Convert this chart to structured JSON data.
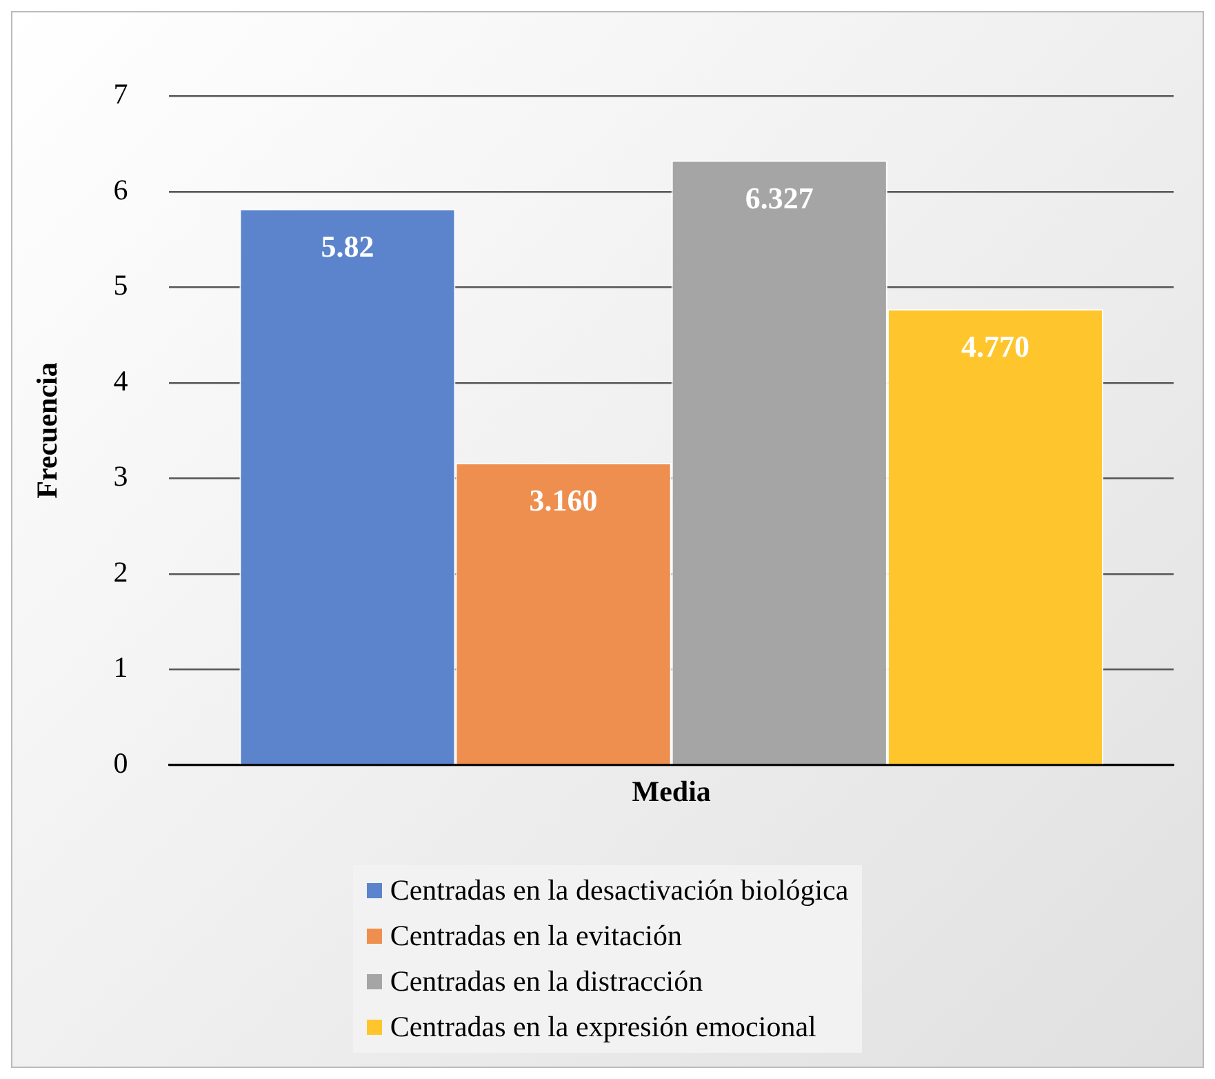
{
  "chart_data": {
    "type": "bar",
    "ylabel": "Frecuencia",
    "categories": [
      "Media"
    ],
    "series": [
      {
        "name": "Centradas en la desactivación biológica",
        "color": "#5b84cc",
        "values": [
          5.82
        ],
        "value_labels": [
          "5.82"
        ]
      },
      {
        "name": "Centradas en la evitación",
        "color": "#ee8f4f",
        "values": [
          3.16
        ],
        "value_labels": [
          "3.160"
        ]
      },
      {
        "name": "Centradas en la distracción",
        "color": "#a5a5a5",
        "values": [
          6.327
        ],
        "value_labels": [
          "6.327"
        ]
      },
      {
        "name": "Centradas en la expresión emocional",
        "color": "#fec62c",
        "values": [
          4.77
        ],
        "value_labels": [
          "4.770"
        ]
      }
    ],
    "ylim": [
      0,
      7
    ],
    "yticks": [
      0,
      1,
      2,
      3,
      4,
      5,
      6,
      7
    ],
    "grid": "y",
    "legend": "bottom"
  }
}
